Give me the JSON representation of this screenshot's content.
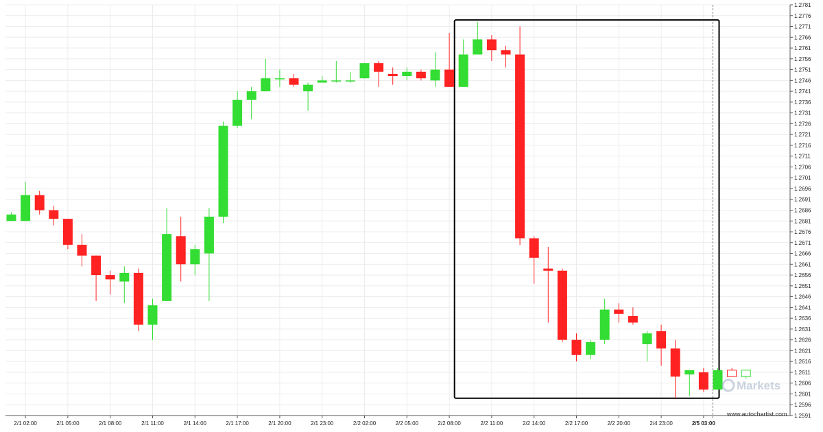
{
  "colors": {
    "bull": "#33dd33",
    "bear": "#ff2222",
    "grid": "#ececec",
    "axis": "#555555",
    "pattern_box": "#000000"
  },
  "watermark": {
    "text": "Markets"
  },
  "credit": "www.autochartist.com",
  "chart_data": {
    "type": "candlestick",
    "y_range": [
      1.2591,
      1.2781
    ],
    "y_ticks": [
      "1.2781",
      "1.2776",
      "1.2771",
      "1.2766",
      "1.2761",
      "1.2756",
      "1.2751",
      "1.2746",
      "1.2741",
      "1.2736",
      "1.2731",
      "1.2726",
      "1.2721",
      "1.2716",
      "1.2711",
      "1.2706",
      "1.2701",
      "1.2696",
      "1.2691",
      "1.2686",
      "1.2681",
      "1.2676",
      "1.2671",
      "1.2666",
      "1.2661",
      "1.2656",
      "1.2651",
      "1.2646",
      "1.2641",
      "1.2636",
      "1.2631",
      "1.2626",
      "1.2621",
      "1.2616",
      "1.2611",
      "1.2606",
      "1.2601",
      "1.2596",
      "1.2591"
    ],
    "x_ticks": [
      {
        "label": "2/1 02:00",
        "index": 1
      },
      {
        "label": "2/1 05:00",
        "index": 4
      },
      {
        "label": "2/1 08:00",
        "index": 7
      },
      {
        "label": "2/1 11:00",
        "index": 10
      },
      {
        "label": "2/1 14:00",
        "index": 13
      },
      {
        "label": "2/1 17:00",
        "index": 16
      },
      {
        "label": "2/1 20:00",
        "index": 19
      },
      {
        "label": "2/1 23:00",
        "index": 22
      },
      {
        "label": "2/2 02:00",
        "index": 25
      },
      {
        "label": "2/2 05:00",
        "index": 28
      },
      {
        "label": "2/2 08:00",
        "index": 31
      },
      {
        "label": "2/2 11:00",
        "index": 34
      },
      {
        "label": "2/2 14:00",
        "index": 37
      },
      {
        "label": "2/2 17:00",
        "index": 40
      },
      {
        "label": "2/2 20:00",
        "index": 43
      },
      {
        "label": "2/4 23:00",
        "index": 46
      },
      {
        "label": "2/5 03:00",
        "index": 49,
        "bold": true
      }
    ],
    "candles": [
      {
        "o": 1.2681,
        "h": 1.2685,
        "l": 1.2681,
        "c": 1.2684
      },
      {
        "o": 1.2681,
        "h": 1.2699,
        "l": 1.2681,
        "c": 1.2693
      },
      {
        "o": 1.2693,
        "h": 1.2695,
        "l": 1.2684,
        "c": 1.2686
      },
      {
        "o": 1.2686,
        "h": 1.2688,
        "l": 1.2679,
        "c": 1.2682
      },
      {
        "o": 1.2682,
        "h": 1.2682,
        "l": 1.2668,
        "c": 1.267
      },
      {
        "o": 1.267,
        "h": 1.2675,
        "l": 1.266,
        "c": 1.2665
      },
      {
        "o": 1.2665,
        "h": 1.2665,
        "l": 1.2644,
        "c": 1.2656
      },
      {
        "o": 1.2656,
        "h": 1.2658,
        "l": 1.2647,
        "c": 1.2654
      },
      {
        "o": 1.2653,
        "h": 1.266,
        "l": 1.2643,
        "c": 1.2657
      },
      {
        "o": 1.2657,
        "h": 1.2659,
        "l": 1.263,
        "c": 1.2633
      },
      {
        "o": 1.2633,
        "h": 1.2645,
        "l": 1.2626,
        "c": 1.2642
      },
      {
        "o": 1.2644,
        "h": 1.2687,
        "l": 1.2644,
        "c": 1.2675
      },
      {
        "o": 1.2674,
        "h": 1.2683,
        "l": 1.2653,
        "c": 1.2661
      },
      {
        "o": 1.2661,
        "h": 1.267,
        "l": 1.2656,
        "c": 1.2668
      },
      {
        "o": 1.2666,
        "h": 1.2687,
        "l": 1.2644,
        "c": 1.2683
      },
      {
        "o": 1.2683,
        "h": 1.2727,
        "l": 1.268,
        "c": 1.2725
      },
      {
        "o": 1.2725,
        "h": 1.2741,
        "l": 1.2724,
        "c": 1.2737
      },
      {
        "o": 1.2737,
        "h": 1.2743,
        "l": 1.2728,
        "c": 1.2741
      },
      {
        "o": 1.2741,
        "h": 1.2756,
        "l": 1.2741,
        "c": 1.2747
      },
      {
        "o": 1.2747,
        "h": 1.2751,
        "l": 1.2743,
        "c": 1.2747
      },
      {
        "o": 1.2747,
        "h": 1.2749,
        "l": 1.2743,
        "c": 1.2744
      },
      {
        "o": 1.2741,
        "h": 1.2745,
        "l": 1.2732,
        "c": 1.2744
      },
      {
        "o": 1.2745,
        "h": 1.2748,
        "l": 1.2745,
        "c": 1.2746
      },
      {
        "o": 1.2746,
        "h": 1.2755,
        "l": 1.2745,
        "c": 1.2746
      },
      {
        "o": 1.2746,
        "h": 1.275,
        "l": 1.2745,
        "c": 1.2746
      },
      {
        "o": 1.2747,
        "h": 1.2754,
        "l": 1.2747,
        "c": 1.2754
      },
      {
        "o": 1.2754,
        "h": 1.2755,
        "l": 1.2743,
        "c": 1.275
      },
      {
        "o": 1.2749,
        "h": 1.2752,
        "l": 1.2744,
        "c": 1.2748
      },
      {
        "o": 1.2748,
        "h": 1.2752,
        "l": 1.2746,
        "c": 1.275
      },
      {
        "o": 1.275,
        "h": 1.2751,
        "l": 1.2746,
        "c": 1.2747
      },
      {
        "o": 1.2746,
        "h": 1.2759,
        "l": 1.2743,
        "c": 1.2751
      },
      {
        "o": 1.2751,
        "h": 1.2768,
        "l": 1.2743,
        "c": 1.2743
      },
      {
        "o": 1.2743,
        "h": 1.2765,
        "l": 1.2743,
        "c": 1.2758
      },
      {
        "o": 1.2758,
        "h": 1.2773,
        "l": 1.2758,
        "c": 1.2765
      },
      {
        "o": 1.2765,
        "h": 1.2767,
        "l": 1.2755,
        "c": 1.276
      },
      {
        "o": 1.276,
        "h": 1.2762,
        "l": 1.2752,
        "c": 1.2758
      },
      {
        "o": 1.2758,
        "h": 1.2771,
        "l": 1.267,
        "c": 1.2673
      },
      {
        "o": 1.2673,
        "h": 1.2674,
        "l": 1.2652,
        "c": 1.2664
      },
      {
        "o": 1.2659,
        "h": 1.2669,
        "l": 1.2634,
        "c": 1.2658
      },
      {
        "o": 1.2658,
        "h": 1.2659,
        "l": 1.2625,
        "c": 1.2626
      },
      {
        "o": 1.2626,
        "h": 1.2629,
        "l": 1.2616,
        "c": 1.2619
      },
      {
        "o": 1.2619,
        "h": 1.2626,
        "l": 1.2617,
        "c": 1.2625
      },
      {
        "o": 1.2626,
        "h": 1.2645,
        "l": 1.2624,
        "c": 1.264
      },
      {
        "o": 1.264,
        "h": 1.2643,
        "l": 1.2634,
        "c": 1.2638
      },
      {
        "o": 1.2637,
        "h": 1.2641,
        "l": 1.2633,
        "c": 1.2634
      },
      {
        "o": 1.2624,
        "h": 1.263,
        "l": 1.2616,
        "c": 1.2629
      },
      {
        "o": 1.263,
        "h": 1.2633,
        "l": 1.2614,
        "c": 1.2622
      },
      {
        "o": 1.2622,
        "h": 1.2626,
        "l": 1.2599,
        "c": 1.2609
      },
      {
        "o": 1.261,
        "h": 1.2612,
        "l": 1.26,
        "c": 1.2612
      },
      {
        "o": 1.2611,
        "h": 1.2613,
        "l": 1.2602,
        "c": 1.2603
      },
      {
        "o": 1.2603,
        "h": 1.2613,
        "l": 1.2603,
        "c": 1.2612
      },
      {
        "o": 1.2612,
        "h": 1.2613,
        "l": 1.2609,
        "c": 1.2609,
        "hollow": true
      },
      {
        "o": 1.2609,
        "h": 1.2612,
        "l": 1.2608,
        "c": 1.2612,
        "hollow": true
      }
    ],
    "pattern_box": {
      "start_index": 32,
      "end_index": 50,
      "top": 1.2774,
      "bottom": 1.2599
    },
    "current_marker_index": 50
  }
}
